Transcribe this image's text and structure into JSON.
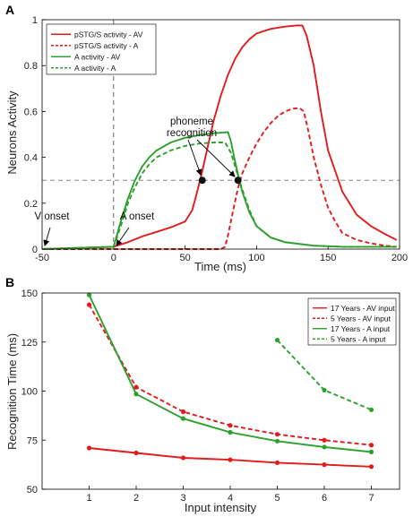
{
  "chart_data": [
    {
      "panel": "A",
      "type": "line",
      "xlabel": "Time (ms)",
      "ylabel": "Neurons Activity",
      "xlim": [
        -50,
        200
      ],
      "ylim": [
        0,
        1
      ],
      "xticks": [
        -50,
        0,
        50,
        100,
        150,
        200
      ],
      "yticks": [
        0,
        0.2,
        0.4,
        0.6,
        0.8,
        1
      ],
      "xtick_labels": [
        "-50",
        "0",
        "50",
        "100",
        "150",
        "200"
      ],
      "ytick_labels": [
        "0",
        "0.2",
        "0.4",
        "0.6",
        "0.8",
        "1"
      ],
      "threshold": 0.3,
      "legend_position": "top-left",
      "series": [
        {
          "name": "pSTG/S activity - AV",
          "color": "#e31a1c",
          "dash": "solid",
          "x": [
            -50,
            0,
            10,
            20,
            30,
            40,
            50,
            55,
            58,
            62,
            66,
            70,
            75,
            80,
            85,
            90,
            95,
            100,
            110,
            120,
            128,
            132,
            135,
            140,
            145,
            150,
            160,
            170,
            180,
            190,
            198
          ],
          "y": [
            0.0,
            0.01,
            0.03,
            0.055,
            0.075,
            0.095,
            0.12,
            0.17,
            0.24,
            0.34,
            0.45,
            0.56,
            0.67,
            0.76,
            0.83,
            0.88,
            0.915,
            0.94,
            0.96,
            0.97,
            0.975,
            0.975,
            0.93,
            0.8,
            0.6,
            0.43,
            0.25,
            0.15,
            0.1,
            0.065,
            0.04
          ]
        },
        {
          "name": "pSTG/S activity - A",
          "color": "#e31a1c",
          "dash": "dashed",
          "x": [
            -50,
            0,
            75,
            78,
            80,
            83,
            86,
            88,
            90,
            95,
            100,
            105,
            110,
            115,
            120,
            125,
            130,
            133,
            136,
            140,
            145,
            150,
            155,
            160,
            170,
            180,
            190,
            198
          ],
          "y": [
            0.0,
            0.0,
            0.0,
            0.01,
            0.06,
            0.15,
            0.24,
            0.29,
            0.33,
            0.4,
            0.46,
            0.51,
            0.55,
            0.58,
            0.6,
            0.612,
            0.615,
            0.6,
            0.52,
            0.4,
            0.28,
            0.18,
            0.12,
            0.07,
            0.04,
            0.025,
            0.015,
            0.01
          ]
        },
        {
          "name": "A activity - AV",
          "color": "#2ca02c",
          "dash": "solid",
          "x": [
            -50,
            0,
            5,
            10,
            15,
            20,
            25,
            30,
            40,
            50,
            60,
            70,
            80,
            82,
            85,
            88,
            90,
            95,
            100,
            110,
            120,
            140,
            160,
            180,
            198
          ],
          "y": [
            0.0,
            0.01,
            0.12,
            0.22,
            0.3,
            0.36,
            0.4,
            0.43,
            0.465,
            0.485,
            0.497,
            0.505,
            0.51,
            0.47,
            0.38,
            0.3,
            0.25,
            0.16,
            0.1,
            0.05,
            0.03,
            0.015,
            0.01,
            0.01,
            0.01
          ]
        },
        {
          "name": "A activity - A",
          "color": "#2ca02c",
          "dash": "dashed",
          "x": [
            -50,
            0,
            5,
            10,
            15,
            20,
            25,
            30,
            40,
            50,
            60,
            70,
            78,
            82,
            85,
            88,
            90,
            95,
            100,
            110,
            120,
            140,
            160,
            180,
            198
          ],
          "y": [
            0.0,
            0.01,
            0.1,
            0.2,
            0.27,
            0.33,
            0.37,
            0.4,
            0.43,
            0.45,
            0.46,
            0.465,
            0.465,
            0.42,
            0.36,
            0.3,
            0.26,
            0.17,
            0.1,
            0.05,
            0.03,
            0.015,
            0.01,
            0.01,
            0.01
          ]
        }
      ],
      "markers": [
        {
          "x": 62,
          "y": 0.3
        },
        {
          "x": 87,
          "y": 0.3
        }
      ],
      "annotations": {
        "phoneme_line1": "phoneme",
        "phoneme_line2": "recognition",
        "v_onset": "V onset",
        "a_onset": "A onset"
      }
    },
    {
      "panel": "B",
      "type": "line",
      "xlabel": "Input intensity",
      "ylabel": "Recognition Time (ms)",
      "xlim": [
        0,
        7.6
      ],
      "ylim": [
        50,
        150
      ],
      "xticks": [
        1,
        2,
        3,
        4,
        5,
        6,
        7
      ],
      "yticks": [
        50,
        75,
        100,
        125,
        150
      ],
      "xtick_labels": [
        "1",
        "2",
        "3",
        "4",
        "5",
        "6",
        "7"
      ],
      "ytick_labels": [
        "50",
        "75",
        "100",
        "125",
        "150"
      ],
      "legend_position": "top-right",
      "series": [
        {
          "name": "17 Years - AV input",
          "color": "#e31a1c",
          "dash": "solid",
          "x": [
            1,
            2,
            3,
            4,
            5,
            6,
            7
          ],
          "y": [
            71,
            68.5,
            66,
            65,
            63.5,
            62.5,
            61.5
          ]
        },
        {
          "name": "5 Years - AV input",
          "color": "#e31a1c",
          "dash": "dashed",
          "x": [
            1,
            2,
            3,
            4,
            5,
            6,
            7
          ],
          "y": [
            144,
            102,
            89.5,
            82.5,
            78,
            75,
            72.5
          ]
        },
        {
          "name": "17 Years - A input",
          "color": "#2ca02c",
          "dash": "solid",
          "x": [
            1,
            2,
            3,
            4,
            5,
            6,
            7
          ],
          "y": [
            149,
            98.5,
            86,
            79,
            74.5,
            71.5,
            69
          ]
        },
        {
          "name": "5 Years - A input",
          "color": "#2ca02c",
          "dash": "dashed",
          "x": [
            5,
            6,
            7
          ],
          "y": [
            126,
            100.5,
            90.5
          ]
        }
      ]
    }
  ]
}
